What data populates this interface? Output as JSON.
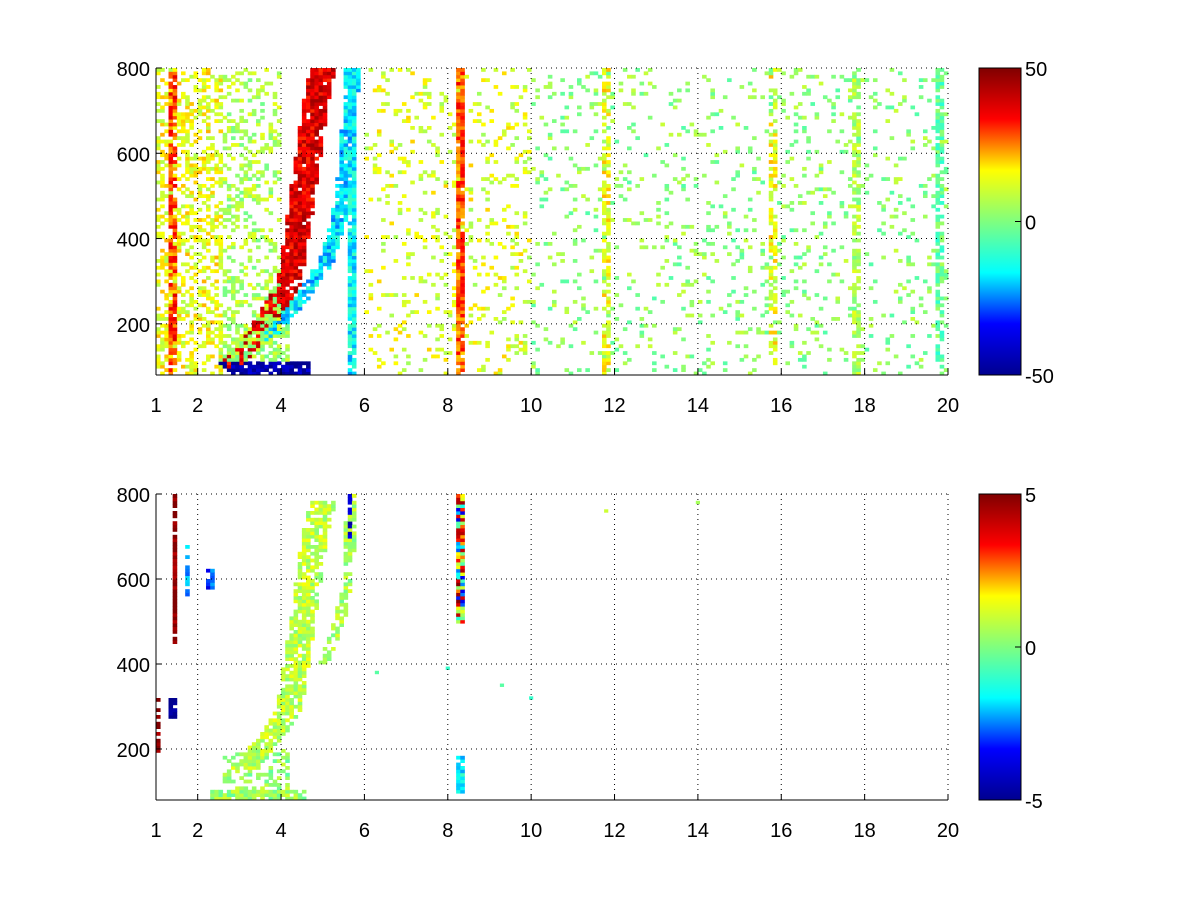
{
  "figure": {
    "background": "#ffffff",
    "colormap": "jet",
    "colormap_stops": [
      "#00008f",
      "#0000ff",
      "#00ffff",
      "#7fff7f",
      "#ffff00",
      "#ff0000",
      "#800000"
    ]
  },
  "chart_data": [
    {
      "type": "heatmap",
      "title": "",
      "xlabel": "",
      "ylabel": "",
      "xlim": [
        1,
        20
      ],
      "ylim": [
        80,
        800
      ],
      "x_ticks": [
        1,
        2,
        4,
        6,
        8,
        10,
        12,
        14,
        16,
        18,
        20
      ],
      "x_tick_labels": [
        "1",
        "2",
        "4",
        "6",
        "8",
        "10",
        "12",
        "14",
        "16",
        "18",
        "20"
      ],
      "y_ticks": [
        200,
        400,
        600,
        800
      ],
      "y_tick_labels": [
        "200",
        "400",
        "600",
        "800"
      ],
      "grid": true,
      "colorbar": {
        "min": -50,
        "max": 50,
        "ticks": [
          50,
          0,
          -50
        ],
        "tick_labels": [
          "50",
          "0",
          "-50"
        ]
      },
      "features": [
        {
          "kind": "sweep",
          "points": [
            [
              2.8,
              100
            ],
            [
              3.8,
              230
            ],
            [
              4.2,
              300
            ],
            [
              4.4,
              420
            ],
            [
              4.6,
              560
            ],
            [
              4.8,
              700
            ],
            [
              5.0,
              800
            ]
          ],
          "value": 38,
          "width": 0.3,
          "density": 0.95
        },
        {
          "kind": "sweep",
          "points": [
            [
              3.5,
              150
            ],
            [
              4.5,
              260
            ],
            [
              5.1,
              350
            ],
            [
              5.4,
              450
            ],
            [
              5.6,
              600
            ],
            [
              5.7,
              800
            ]
          ],
          "value": -18,
          "width": 0.18,
          "density": 0.9
        },
        {
          "kind": "band",
          "x": [
            2.5,
            4.7
          ],
          "y": [
            80,
            110
          ],
          "value": -45,
          "density": 0.8
        },
        {
          "kind": "band",
          "x": [
            2.5,
            4.2
          ],
          "y": [
            110,
            200
          ],
          "value": 5,
          "density": 0.6
        },
        {
          "kind": "band",
          "x": [
            1.0,
            2.6
          ],
          "y": [
            80,
            800
          ],
          "value": 14,
          "density": 0.45
        },
        {
          "kind": "band",
          "x": [
            2.6,
            4.0
          ],
          "y": [
            200,
            800
          ],
          "value": 6,
          "density": 0.3
        },
        {
          "kind": "band",
          "x": [
            6.0,
            10.0
          ],
          "y": [
            80,
            800
          ],
          "value": 12,
          "density": 0.14
        },
        {
          "kind": "band",
          "x": [
            10.0,
            20.0
          ],
          "y": [
            80,
            800
          ],
          "value": 2,
          "density": 0.1
        },
        {
          "kind": "line",
          "x": 8.3,
          "y": [
            80,
            800
          ],
          "value": 28,
          "density": 0.9
        },
        {
          "kind": "line",
          "x": 5.7,
          "y": [
            80,
            800
          ],
          "value": -16,
          "density": 0.85
        },
        {
          "kind": "line",
          "x": 1.4,
          "y": [
            80,
            800
          ],
          "value": 30,
          "density": 0.7
        },
        {
          "kind": "line",
          "x": 11.8,
          "y": [
            80,
            800
          ],
          "value": 14,
          "density": 0.6
        },
        {
          "kind": "line",
          "x": 17.8,
          "y": [
            80,
            800
          ],
          "value": 6,
          "density": 0.6
        },
        {
          "kind": "line",
          "x": 19.8,
          "y": [
            80,
            800
          ],
          "value": -4,
          "density": 0.6
        },
        {
          "kind": "line",
          "x": 15.8,
          "y": [
            80,
            800
          ],
          "value": 14,
          "density": 0.45
        }
      ]
    },
    {
      "type": "heatmap",
      "title": "",
      "xlabel": "",
      "ylabel": "",
      "xlim": [
        1,
        20
      ],
      "ylim": [
        80,
        800
      ],
      "x_ticks": [
        1,
        2,
        4,
        6,
        8,
        10,
        12,
        14,
        16,
        18,
        20
      ],
      "x_tick_labels": [
        "1",
        "2",
        "4",
        "6",
        "8",
        "10",
        "12",
        "14",
        "16",
        "18",
        "20"
      ],
      "y_ticks": [
        200,
        400,
        600,
        800
      ],
      "y_tick_labels": [
        "200",
        "400",
        "600",
        "800"
      ],
      "grid": true,
      "colorbar": {
        "min": -5,
        "max": 5,
        "ticks": [
          5,
          0,
          -5
        ],
        "tick_labels": [
          "5",
          "0",
          "-5"
        ]
      },
      "features": [
        {
          "kind": "band",
          "x": [
            2.3,
            4.6
          ],
          "y": [
            80,
            100
          ],
          "value": 0.4,
          "density": 0.85
        },
        {
          "kind": "band",
          "x": [
            2.6,
            4.2
          ],
          "y": [
            100,
            200
          ],
          "value": 0.3,
          "density": 0.4
        },
        {
          "kind": "sweep",
          "points": [
            [
              3.0,
              150
            ],
            [
              3.8,
              230
            ],
            [
              4.2,
              300
            ],
            [
              4.4,
              420
            ],
            [
              4.6,
              560
            ],
            [
              4.8,
              700
            ],
            [
              5.0,
              780
            ]
          ],
          "value": 0.8,
          "width": 0.3,
          "density": 0.8
        },
        {
          "kind": "sweep",
          "points": [
            [
              5.0,
              400
            ],
            [
              5.4,
              500
            ],
            [
              5.6,
              600
            ],
            [
              5.7,
              800
            ]
          ],
          "value": 0.5,
          "width": 0.12,
          "density": 0.7
        },
        {
          "kind": "line",
          "x": 8.3,
          "y": [
            500,
            800
          ],
          "value": 0.5,
          "spread": 4.5,
          "density": 1.0
        },
        {
          "kind": "line",
          "x": 8.3,
          "y": [
            100,
            180
          ],
          "value": -1.5,
          "density": 0.9
        },
        {
          "kind": "line",
          "x": 5.65,
          "y": [
            700,
            800
          ],
          "value": -4,
          "density": 0.8
        },
        {
          "kind": "line",
          "x": 1.45,
          "y": [
            450,
            800
          ],
          "value": 5,
          "density": 0.9
        },
        {
          "kind": "line",
          "x": 1.0,
          "y": [
            180,
            320
          ],
          "value": 5,
          "density": 0.7
        },
        {
          "kind": "line",
          "x": 1.4,
          "y": [
            270,
            320
          ],
          "value": -5,
          "density": 0.9
        },
        {
          "kind": "line",
          "x": 1.75,
          "y": [
            560,
            690
          ],
          "value": -2,
          "density": 0.6
        },
        {
          "kind": "line",
          "x": 2.3,
          "y": [
            580,
            620
          ],
          "value": -3,
          "density": 0.6
        },
        {
          "kind": "point",
          "x": 11.8,
          "y": 760,
          "value": 1
        },
        {
          "kind": "point",
          "x": 14.0,
          "y": 780,
          "value": 0.5
        },
        {
          "kind": "point",
          "x": 10.0,
          "y": 320,
          "value": -1
        },
        {
          "kind": "point",
          "x": 9.3,
          "y": 350,
          "value": -0.5
        },
        {
          "kind": "point",
          "x": 8.0,
          "y": 390,
          "value": -1
        },
        {
          "kind": "point",
          "x": 6.3,
          "y": 380,
          "value": -0.5
        }
      ]
    }
  ]
}
